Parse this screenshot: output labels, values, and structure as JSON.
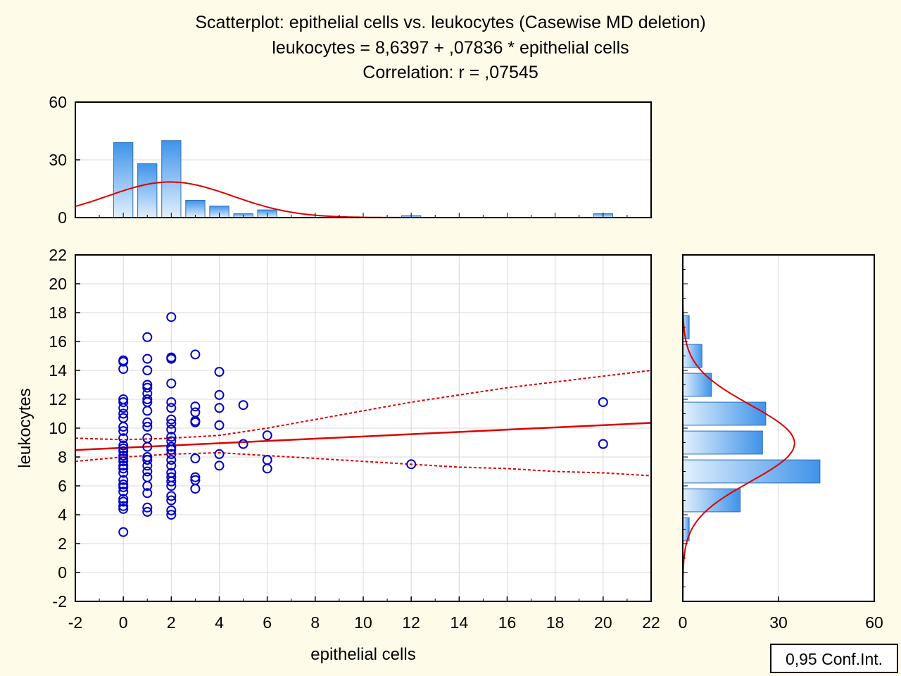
{
  "chart_data": {
    "type": "scatter",
    "title_lines": [
      "Scatterplot: epithelial cells vs. leukocytes (Casewise MD deletion)",
      "leukocytes = 8,6397 + ,07836 * epithelial cells",
      "Correlation: r = ,07545"
    ],
    "xlabel": "epithelial cells",
    "ylabel": "leukocytes",
    "xlim": [
      -2,
      22
    ],
    "ylim": [
      -2,
      22
    ],
    "x_ticks": [
      -2,
      0,
      2,
      4,
      6,
      8,
      10,
      12,
      14,
      16,
      18,
      20,
      22
    ],
    "y_ticks": [
      -2,
      0,
      2,
      4,
      6,
      8,
      10,
      12,
      14,
      16,
      18,
      20,
      22
    ],
    "grid": true,
    "marker_color": "#0000cc",
    "fit_color": "#dd0000",
    "regression": {
      "intercept": 8.6397,
      "slope": 0.07836
    },
    "conf_band": {
      "x": [
        -2,
        0,
        2,
        4,
        6,
        8,
        10,
        12,
        14,
        16,
        18,
        20,
        22
      ],
      "upper": [
        9.3,
        9.2,
        9.3,
        9.5,
        10.0,
        10.6,
        11.2,
        11.8,
        12.3,
        12.8,
        13.2,
        13.6,
        14.0
      ],
      "lower": [
        7.7,
        8.0,
        8.2,
        8.3,
        8.1,
        7.9,
        7.7,
        7.5,
        7.3,
        7.2,
        7.0,
        6.9,
        6.7
      ]
    },
    "points": [
      [
        0,
        2.8
      ],
      [
        0,
        4.4
      ],
      [
        0,
        4.6
      ],
      [
        0,
        4.9
      ],
      [
        0,
        5.1
      ],
      [
        0,
        5.6
      ],
      [
        0,
        5.9
      ],
      [
        0,
        6.1
      ],
      [
        0,
        6.4
      ],
      [
        0,
        6.9
      ],
      [
        0,
        7.2
      ],
      [
        0,
        7.4
      ],
      [
        0,
        7.7
      ],
      [
        0,
        7.9
      ],
      [
        0,
        8.1
      ],
      [
        0,
        8.4
      ],
      [
        0,
        8.6
      ],
      [
        0,
        8.8
      ],
      [
        0,
        9.3
      ],
      [
        0,
        9.8
      ],
      [
        0,
        10.1
      ],
      [
        0,
        10.7
      ],
      [
        0,
        11.0
      ],
      [
        0,
        11.4
      ],
      [
        0,
        11.8
      ],
      [
        0,
        12.0
      ],
      [
        0,
        14.1
      ],
      [
        0,
        14.6
      ],
      [
        0,
        14.7
      ],
      [
        1,
        4.2
      ],
      [
        1,
        4.5
      ],
      [
        1,
        5.5
      ],
      [
        1,
        6.0
      ],
      [
        1,
        6.6
      ],
      [
        1,
        7.0
      ],
      [
        1,
        7.4
      ],
      [
        1,
        7.8
      ],
      [
        1,
        8.0
      ],
      [
        1,
        8.7
      ],
      [
        1,
        9.3
      ],
      [
        1,
        10.1
      ],
      [
        1,
        10.4
      ],
      [
        1,
        11.2
      ],
      [
        1,
        11.8
      ],
      [
        1,
        12.0
      ],
      [
        1,
        12.4
      ],
      [
        1,
        12.8
      ],
      [
        1,
        13.0
      ],
      [
        1,
        14.0
      ],
      [
        1,
        14.8
      ],
      [
        1,
        16.3
      ],
      [
        2,
        4.0
      ],
      [
        2,
        4.3
      ],
      [
        2,
        5.0
      ],
      [
        2,
        5.3
      ],
      [
        2,
        6.0
      ],
      [
        2,
        6.3
      ],
      [
        2,
        6.6
      ],
      [
        2,
        6.9
      ],
      [
        2,
        7.4
      ],
      [
        2,
        7.8
      ],
      [
        2,
        8.2
      ],
      [
        2,
        8.5
      ],
      [
        2,
        8.7
      ],
      [
        2,
        9.1
      ],
      [
        2,
        9.4
      ],
      [
        2,
        9.9
      ],
      [
        2,
        10.3
      ],
      [
        2,
        10.6
      ],
      [
        2,
        11.4
      ],
      [
        2,
        11.8
      ],
      [
        2,
        13.1
      ],
      [
        2,
        14.8
      ],
      [
        2,
        14.9
      ],
      [
        2,
        17.7
      ],
      [
        3,
        5.8
      ],
      [
        3,
        6.4
      ],
      [
        3,
        6.6
      ],
      [
        3,
        7.9
      ],
      [
        3,
        10.4
      ],
      [
        3,
        10.5
      ],
      [
        3,
        11.1
      ],
      [
        3,
        11.5
      ],
      [
        3,
        15.1
      ],
      [
        4,
        7.4
      ],
      [
        4,
        8.2
      ],
      [
        4,
        10.2
      ],
      [
        4,
        11.4
      ],
      [
        4,
        12.3
      ],
      [
        4,
        13.9
      ],
      [
        5,
        8.9
      ],
      [
        5,
        11.6
      ],
      [
        6,
        7.2
      ],
      [
        6,
        7.8
      ],
      [
        6,
        9.5
      ],
      [
        12,
        7.5
      ],
      [
        20,
        8.9
      ],
      [
        20,
        11.8
      ]
    ],
    "x_histogram": {
      "ylim": [
        0,
        60
      ],
      "y_ticks": [
        0,
        30,
        60
      ],
      "bins": [
        {
          "center": 0,
          "count": 39
        },
        {
          "center": 1,
          "count": 28
        },
        {
          "center": 2,
          "count": 40
        },
        {
          "center": 3,
          "count": 9
        },
        {
          "center": 4,
          "count": 6
        },
        {
          "center": 5,
          "count": 2
        },
        {
          "center": 6,
          "count": 4
        },
        {
          "center": 12,
          "count": 1
        },
        {
          "center": 20,
          "count": 2
        }
      ],
      "normal_curve": {
        "mean": 1.95,
        "sd": 2.6,
        "peak": 18.5
      }
    },
    "y_histogram": {
      "xlim": [
        0,
        60
      ],
      "x_ticks": [
        0,
        30,
        60
      ],
      "bins": [
        {
          "from": 2,
          "to": 4,
          "count": 2
        },
        {
          "from": 4,
          "to": 6,
          "count": 18
        },
        {
          "from": 6,
          "to": 8,
          "count": 43
        },
        {
          "from": 8,
          "to": 10,
          "count": 25
        },
        {
          "from": 10,
          "to": 12,
          "count": 26
        },
        {
          "from": 12,
          "to": 14,
          "count": 9
        },
        {
          "from": 14,
          "to": 16,
          "count": 6
        },
        {
          "from": 16,
          "to": 18,
          "count": 2
        }
      ],
      "normal_curve": {
        "mean": 8.95,
        "sd": 2.65,
        "peak": 35
      }
    },
    "legend": {
      "label": "0,95 Conf.Int.",
      "position": "bottom-right"
    }
  }
}
